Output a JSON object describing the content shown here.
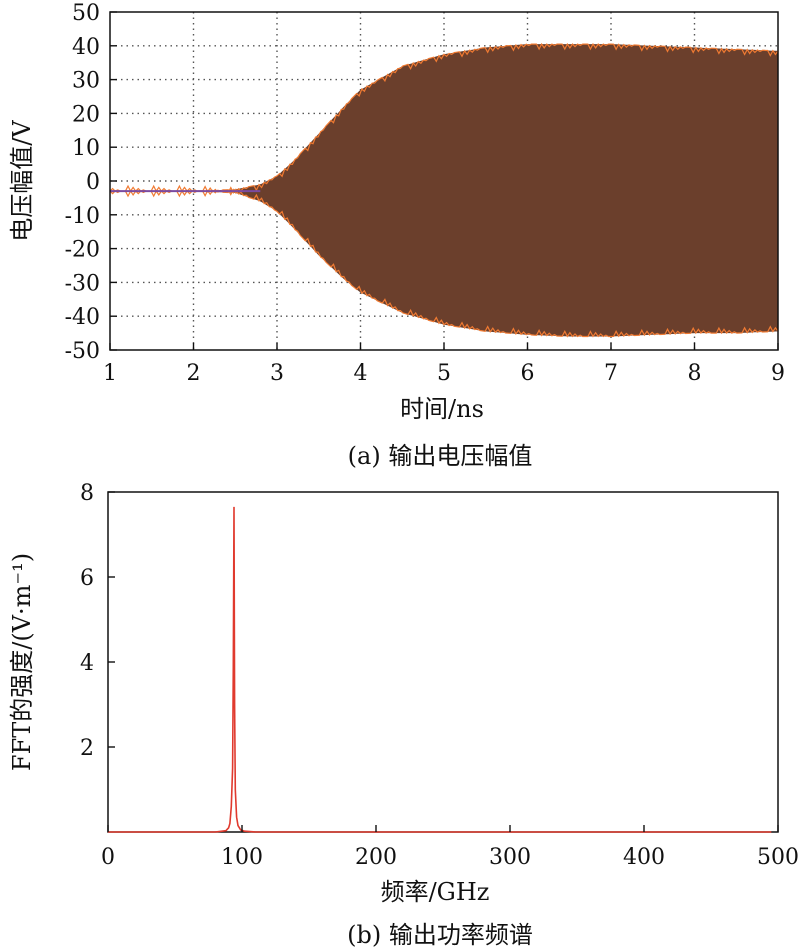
{
  "chart_data": [
    {
      "type": "line",
      "caption": "(a) 输出电压幅值",
      "xlabel": "时间/ns",
      "ylabel": "电压幅值/V",
      "xlim": [
        1,
        9
      ],
      "ylim": [
        -50,
        50
      ],
      "xticks": [
        1,
        2,
        3,
        4,
        5,
        6,
        7,
        8,
        9
      ],
      "yticks": [
        50,
        40,
        30,
        20,
        10,
        0,
        -10,
        -20,
        -30,
        -40,
        -50
      ],
      "grid": "dotted",
      "colors": {
        "fill": "#6b3f2c",
        "edge": "#f07a32",
        "early": "#7a4aa0"
      },
      "envelope": {
        "t": [
          1.0,
          2.0,
          2.5,
          2.8,
          3.0,
          3.2,
          3.5,
          3.8,
          4.0,
          4.5,
          5.0,
          5.5,
          6.0,
          6.5,
          7.0,
          7.5,
          8.0,
          8.5,
          9.0
        ],
        "upper": [
          -3.0,
          -3.0,
          -2.5,
          -1.0,
          1.5,
          6.0,
          14.0,
          22.0,
          27.0,
          34.0,
          37.5,
          39.5,
          40.5,
          40.5,
          40.5,
          40.0,
          39.5,
          39.0,
          38.5
        ],
        "lower": [
          -3.0,
          -3.0,
          -3.5,
          -6.0,
          -9.0,
          -14.0,
          -22.0,
          -29.0,
          -33.0,
          -39.0,
          -42.5,
          -44.5,
          -45.5,
          -46.0,
          -46.0,
          -45.5,
          -45.0,
          -45.0,
          -44.5
        ]
      }
    },
    {
      "type": "line",
      "caption": "(b) 输出功率频谱",
      "xlabel": "频率/GHz",
      "ylabel": "FFT的强度/(V·m⁻¹)",
      "xlim": [
        0,
        500
      ],
      "ylim": [
        0,
        8
      ],
      "xticks": [
        0,
        100,
        200,
        300,
        400,
        500
      ],
      "yticks": [
        2,
        4,
        6,
        8
      ],
      "grid": "off",
      "colors": {
        "line": "#e03a2e"
      },
      "x": [
        0,
        80,
        88,
        90,
        91,
        92,
        93,
        93.5,
        94,
        94.5,
        95,
        96,
        97,
        99,
        102,
        110,
        495
      ],
      "y": [
        0,
        0,
        0.03,
        0.1,
        0.2,
        0.6,
        1.5,
        3.9,
        7.65,
        3.0,
        1.0,
        0.35,
        0.15,
        0.05,
        0.02,
        0,
        0
      ]
    }
  ]
}
